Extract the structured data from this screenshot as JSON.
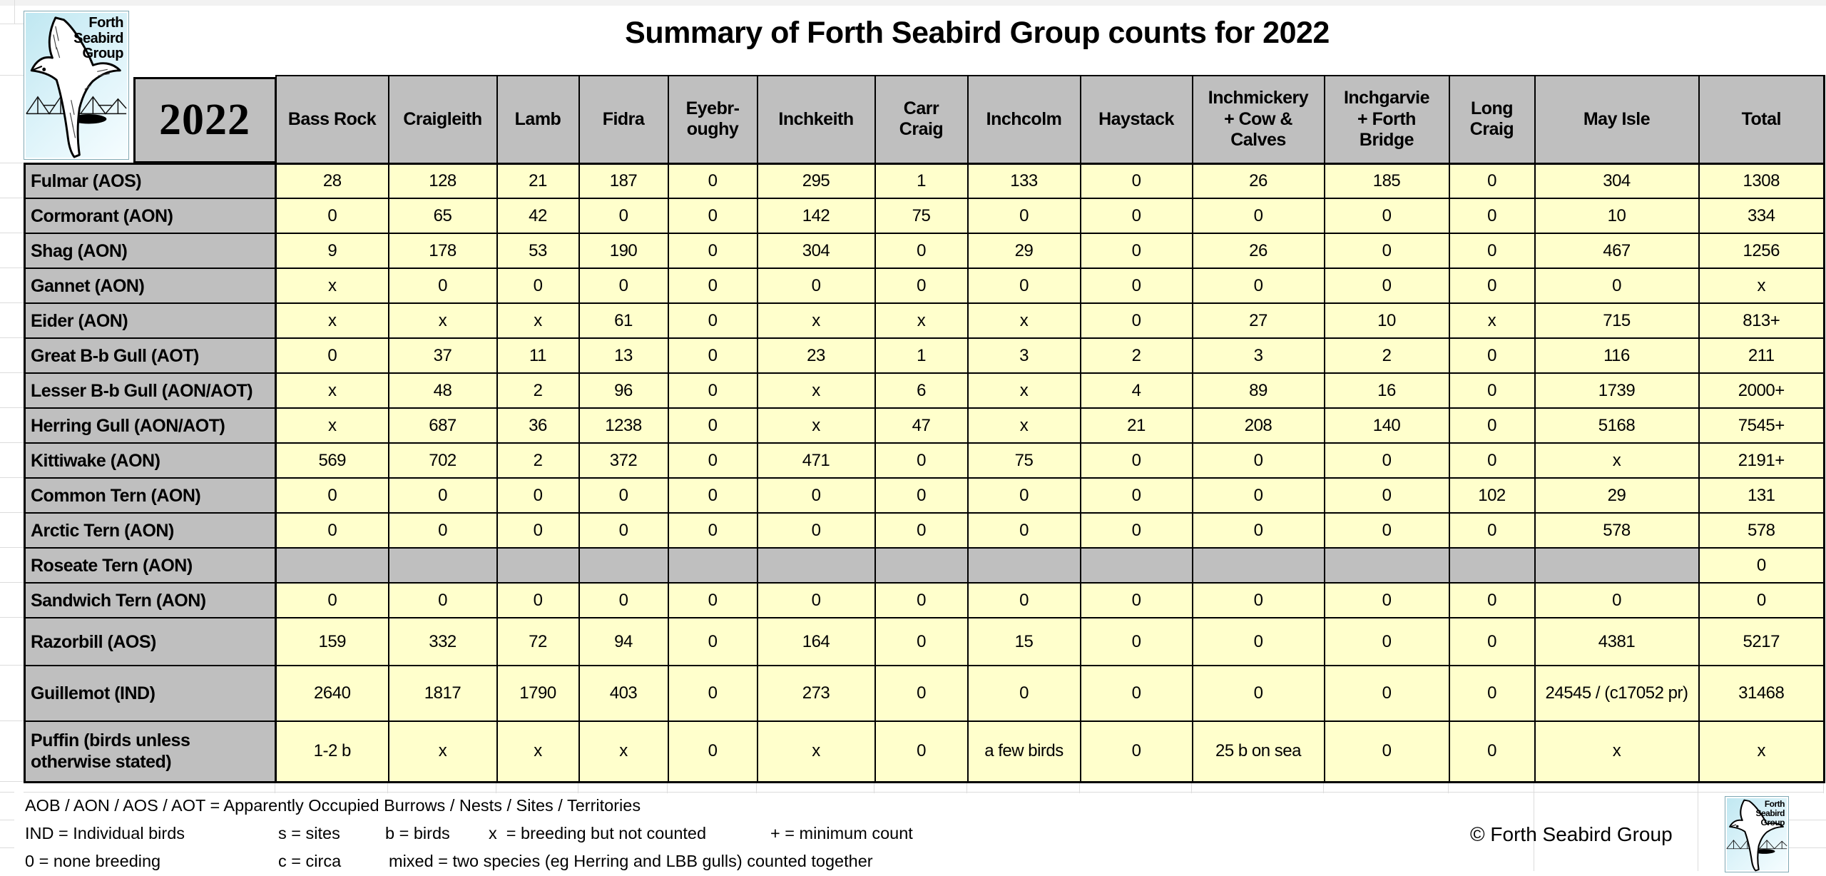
{
  "title": "Summary of Forth Seabird Group counts for 2022",
  "year": "2022",
  "logo": {
    "lines": [
      "Forth",
      "Seabird",
      "Group"
    ]
  },
  "table": {
    "columns": [
      "Bass Rock",
      "Craigleith",
      "Lamb",
      "Fidra",
      "Eyebr-\noughy",
      "Inchkeith",
      "Carr\nCraig",
      "Inchcolm",
      "Haystack",
      "Inchmickery\n+ Cow &\nCalves",
      "Inchgarvie\n+ Forth\nBridge",
      "Long\nCraig",
      "May Isle",
      "Total"
    ],
    "rows": [
      {
        "species": "Fulmar (AOS)",
        "values": [
          "28",
          "128",
          "21",
          "187",
          "0",
          "295",
          "1",
          "133",
          "0",
          "26",
          "185",
          "0",
          "304",
          "1308"
        ]
      },
      {
        "species": "Cormorant (AON)",
        "values": [
          "0",
          "65",
          "42",
          "0",
          "0",
          "142",
          "75",
          "0",
          "0",
          "0",
          "0",
          "0",
          "10",
          "334"
        ]
      },
      {
        "species": "Shag (AON)",
        "values": [
          "9",
          "178",
          "53",
          "190",
          "0",
          "304",
          "0",
          "29",
          "0",
          "26",
          "0",
          "0",
          "467",
          "1256"
        ]
      },
      {
        "species": "Gannet (AON)",
        "values": [
          "x",
          "0",
          "0",
          "0",
          "0",
          "0",
          "0",
          "0",
          "0",
          "0",
          "0",
          "0",
          "0",
          "x"
        ]
      },
      {
        "species": "Eider (AON)",
        "values": [
          "x",
          "x",
          "x",
          "61",
          "0",
          "x",
          "x",
          "x",
          "0",
          "27",
          "10",
          "x",
          "715",
          "813+"
        ]
      },
      {
        "species": "Great B-b Gull (AOT)",
        "values": [
          "0",
          "37",
          "11",
          "13",
          "0",
          "23",
          "1",
          "3",
          "2",
          "3",
          "2",
          "0",
          "116",
          "211"
        ]
      },
      {
        "species": "Lesser B-b Gull (AON/AOT)",
        "values": [
          "x",
          "48",
          "2",
          "96",
          "0",
          "x",
          "6",
          "x",
          "4",
          "89",
          "16",
          "0",
          "1739",
          "2000+"
        ]
      },
      {
        "species": "Herring Gull (AON/AOT)",
        "values": [
          "x",
          "687",
          "36",
          "1238",
          "0",
          "x",
          "47",
          "x",
          "21",
          "208",
          "140",
          "0",
          "5168",
          "7545+"
        ]
      },
      {
        "species": "Kittiwake (AON)",
        "values": [
          "569",
          "702",
          "2",
          "372",
          "0",
          "471",
          "0",
          "75",
          "0",
          "0",
          "0",
          "0",
          "x",
          "2191+"
        ]
      },
      {
        "species": "Common Tern (AON)",
        "values": [
          "0",
          "0",
          "0",
          "0",
          "0",
          "0",
          "0",
          "0",
          "0",
          "0",
          "0",
          "102",
          "29",
          "131"
        ]
      },
      {
        "species": "Arctic Tern (AON)",
        "values": [
          "0",
          "0",
          "0",
          "0",
          "0",
          "0",
          "0",
          "0",
          "0",
          "0",
          "0",
          "0",
          "578",
          "578"
        ]
      },
      {
        "species": "Roseate Tern (AON)",
        "gray_empty": true,
        "values": [
          "",
          "",
          "",
          "",
          "",
          "",
          "",
          "",
          "",
          "",
          "",
          "",
          "",
          "0"
        ]
      },
      {
        "species": "Sandwich Tern (AON)",
        "values": [
          "0",
          "0",
          "0",
          "0",
          "0",
          "0",
          "0",
          "0",
          "0",
          "0",
          "0",
          "0",
          "0",
          "0"
        ]
      },
      {
        "species": "Razorbill (AOS)",
        "values": [
          "159",
          "332",
          "72",
          "94",
          "0",
          "164",
          "0",
          "15",
          "0",
          "0",
          "0",
          "0",
          "4381",
          "5217"
        ]
      },
      {
        "species": "Guillemot (IND)",
        "values": [
          "2640",
          "1817",
          "1790",
          "403",
          "0",
          "273",
          "0",
          "0",
          "0",
          "0",
          "0",
          "0",
          "24545 / (c17052 pr)",
          "31468"
        ]
      },
      {
        "species": "Puffin (birds unless otherwise stated)",
        "values": [
          "1-2 b",
          "x",
          "x",
          "x",
          "0",
          "x",
          "0",
          "a few birds",
          "0",
          "25 b on sea",
          "0",
          "0",
          "x",
          "x"
        ]
      }
    ]
  },
  "footer": {
    "line1": "AOB / AON / AOS / AOT = Apparently Occupied Burrows / Nests / Sites / Territories",
    "line2": [
      "IND = Individual birds",
      "s = sites",
      "b = birds",
      "x  = breeding but not counted",
      "+ = minimum count"
    ],
    "line3": [
      "0 = none breeding",
      "c = circa",
      "mixed = two species (eg Herring and LBB gulls) counted together"
    ],
    "copyright": "© Forth Seabird Group"
  }
}
